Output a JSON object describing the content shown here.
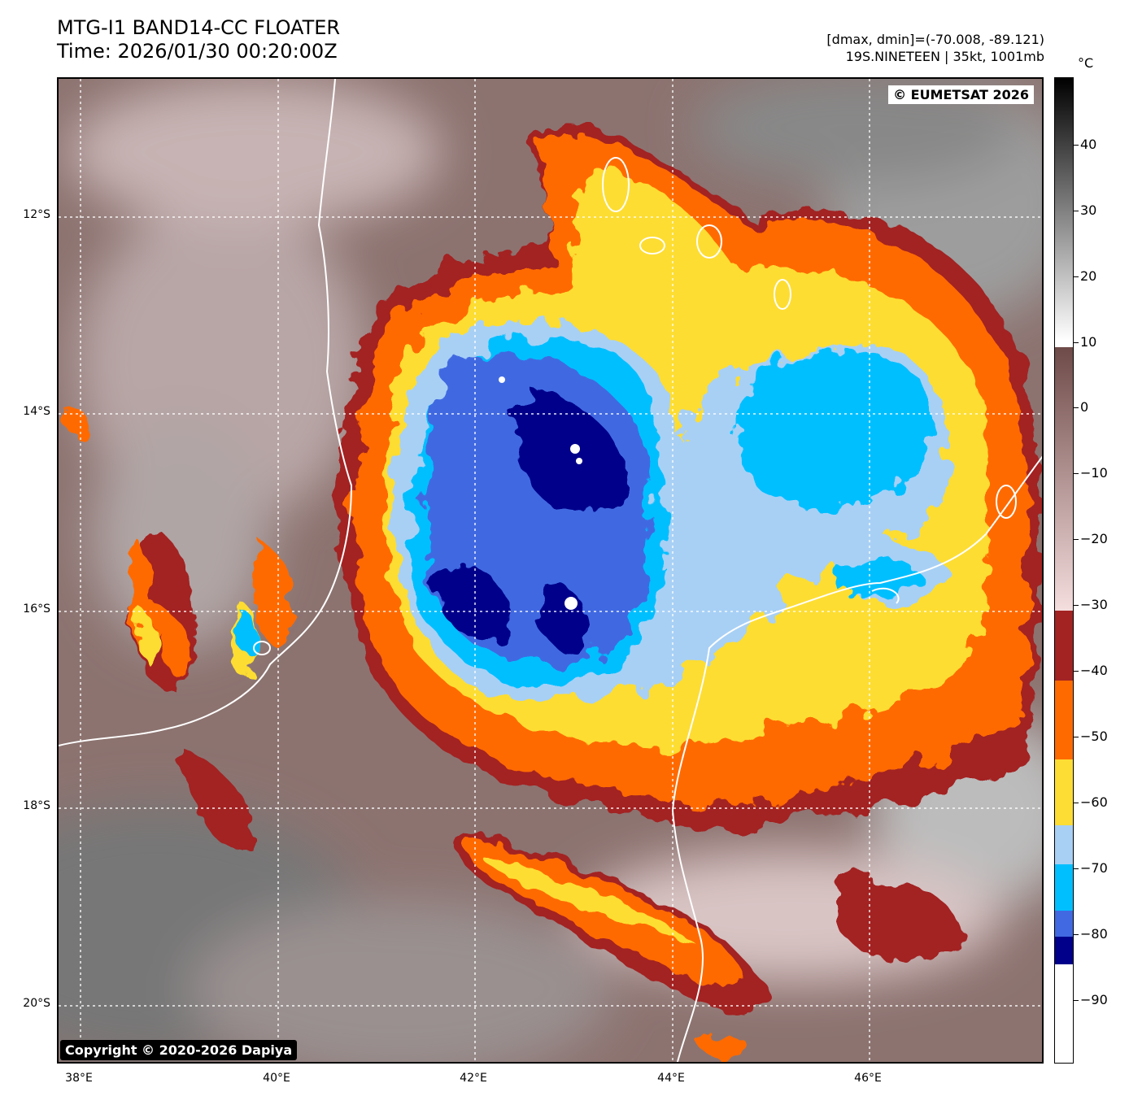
{
  "header": {
    "title_line1": "MTG-I1 BAND14-CC FLOATER",
    "title_line2": "Time: 2026/01/30 00:20:00Z",
    "dmax_dmin": "[dmax, dmin]=(-70.008, -89.121)",
    "storm_info": "19S.NINETEEN | 35kt, 1001mb"
  },
  "map": {
    "copyright_top": "© EUMETSAT 2026",
    "copyright_bottom": "Copyright © 2020-2026 Dapiya",
    "lat_labels": [
      "12°S",
      "14°S",
      "16°S",
      "18°S",
      "20°S"
    ],
    "lon_labels": [
      "38°E",
      "40°E",
      "42°E",
      "44°E",
      "46°E"
    ],
    "lat_values": [
      -12,
      -14,
      -16,
      -18,
      -20
    ],
    "lon_values": [
      38,
      40,
      42,
      44,
      46
    ],
    "lon_range": [
      37.8,
      47.8
    ],
    "lat_range": [
      -10.6,
      -20.6
    ],
    "gridlines": true
  },
  "colorbar": {
    "unit": "°C",
    "tick_labels": [
      "40",
      "30",
      "20",
      "10",
      "0",
      "−10",
      "−20",
      "−30",
      "−40",
      "−50",
      "−60",
      "−70",
      "−80",
      "−90"
    ],
    "tick_values": [
      40,
      30,
      20,
      10,
      0,
      -10,
      -20,
      -30,
      -40,
      -50,
      -60,
      -70,
      -80,
      -90
    ],
    "range": [
      50,
      -100
    ],
    "colors": {
      "white_to_black_top": "#000000",
      "brown_mid": "#6e4a48",
      "pink_light": "#f3d9d9",
      "dark_red": "#a32323",
      "orange": "#ff6a00",
      "yellow": "#fddd33",
      "light_blue": "#a8d0f5",
      "sky_blue": "#00bfff",
      "royal_blue": "#4169e1",
      "navy": "#00008b",
      "white_bottom": "#ffffff"
    }
  }
}
